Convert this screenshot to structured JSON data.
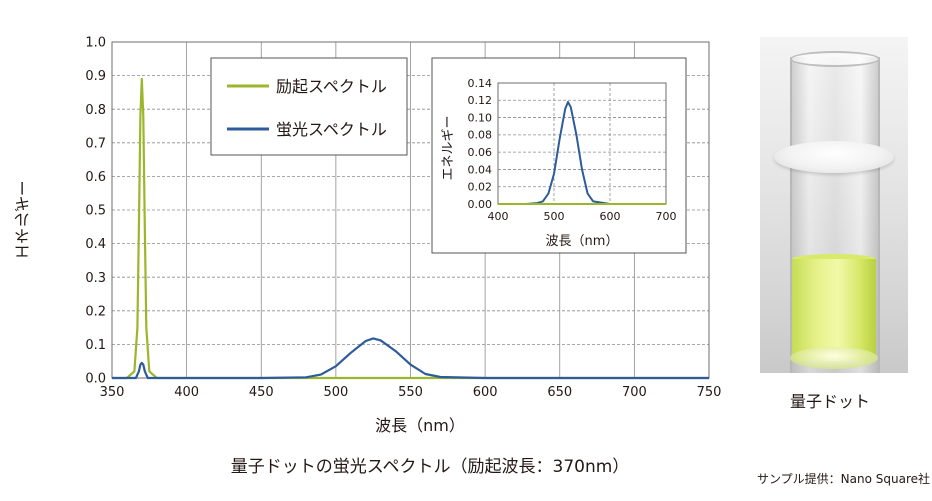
{
  "main_chart": {
    "ylabel": "エネルギー",
    "xlabel": "波長（nm）",
    "xticks": [
      "350",
      "400",
      "450",
      "500",
      "550",
      "600",
      "650",
      "700",
      "750"
    ],
    "yticks": [
      "0.0",
      "0.1",
      "0.2",
      "0.3",
      "0.4",
      "0.5",
      "0.6",
      "0.7",
      "0.8",
      "0.9",
      "1.0"
    ],
    "legend": [
      "励起スペクトル",
      "蛍光スペクトル"
    ]
  },
  "inset_chart": {
    "ylabel": "エネルギー",
    "xlabel": "波長（nm）",
    "xticks": [
      "400",
      "500",
      "600",
      "700"
    ],
    "yticks": [
      "0.00",
      "0.02",
      "0.04",
      "0.06",
      "0.08",
      "0.10",
      "0.12",
      "0.14"
    ]
  },
  "caption": "量子ドットの蛍光スペクトル（励起波長：370nm）",
  "credit": "サンプル提供：Nano Square社",
  "photo_label": "量子ドット",
  "colors": {
    "excitation": "#9cb62c",
    "fluorescence": "#2e5b9a"
  },
  "chart_data": [
    {
      "type": "line",
      "title": "",
      "xlabel": "波長（nm）",
      "ylabel": "エネルギー",
      "xlim": [
        350,
        750
      ],
      "ylim": [
        0.0,
        1.0
      ],
      "grid": true,
      "legend_position": "top-center",
      "series": [
        {
          "name": "励起スペクトル",
          "x": [
            350,
            360,
            365,
            367,
            368,
            369,
            370,
            371,
            372,
            373,
            375,
            380,
            400,
            450,
            500,
            550,
            600,
            650,
            700,
            750
          ],
          "values": [
            0.0,
            0.0,
            0.02,
            0.15,
            0.45,
            0.78,
            0.89,
            0.78,
            0.45,
            0.15,
            0.02,
            0.0,
            0.0,
            0.0,
            0.0,
            0.0,
            0.0,
            0.0,
            0.0,
            0.0
          ]
        },
        {
          "name": "蛍光スペクトル",
          "x": [
            350,
            366,
            368,
            369,
            370,
            371,
            372,
            374,
            380,
            450,
            480,
            490,
            500,
            510,
            520,
            525,
            530,
            540,
            550,
            560,
            570,
            600,
            650,
            700,
            750
          ],
          "values": [
            0.0,
            0.0,
            0.02,
            0.04,
            0.045,
            0.04,
            0.02,
            0.0,
            0.0,
            0.0,
            0.002,
            0.01,
            0.035,
            0.075,
            0.11,
            0.118,
            0.112,
            0.08,
            0.04,
            0.012,
            0.003,
            0.0,
            0.0,
            0.0,
            0.0
          ]
        }
      ]
    },
    {
      "type": "line",
      "title": "",
      "xlabel": "波長（nm）",
      "ylabel": "エネルギー",
      "xlim": [
        400,
        700
      ],
      "ylim": [
        0.0,
        0.14
      ],
      "grid": true,
      "series": [
        {
          "name": "",
          "x": [
            400,
            450,
            470,
            480,
            490,
            500,
            510,
            520,
            525,
            530,
            540,
            550,
            560,
            570,
            600,
            700
          ],
          "values": [
            0.0,
            0.0,
            0.001,
            0.003,
            0.012,
            0.035,
            0.075,
            0.11,
            0.118,
            0.112,
            0.08,
            0.04,
            0.012,
            0.003,
            0.0,
            0.0
          ]
        },
        {
          "name": "",
          "x": [
            400,
            700
          ],
          "values": [
            0.0,
            0.0
          ]
        }
      ]
    }
  ]
}
